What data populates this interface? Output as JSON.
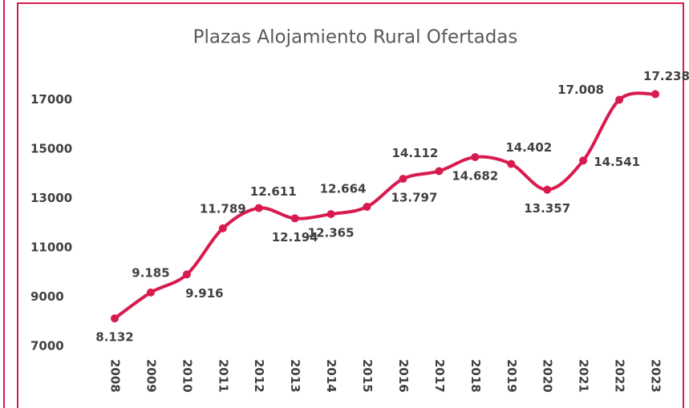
{
  "chart_data": {
    "type": "line",
    "title": "Plazas Alojamiento Rural Ofertadas",
    "categories": [
      "2008",
      "2009",
      "2010",
      "2011",
      "2012",
      "2013",
      "2014",
      "2015",
      "2016",
      "2017",
      "2018",
      "2019",
      "2020",
      "2021",
      "2022",
      "2023"
    ],
    "values": [
      8132,
      9185,
      9916,
      11789,
      12611,
      12194,
      12365,
      12664,
      13797,
      14112,
      14682,
      14402,
      13357,
      14541,
      17008,
      17238
    ],
    "value_labels": [
      "8.132",
      "9.185",
      "9.916",
      "11.789",
      "12.611",
      "12.194",
      "12.365",
      "12.664",
      "13.797",
      "14.112",
      "14.682",
      "14.402",
      "13.357",
      "14.541",
      "17.008",
      "17.238"
    ],
    "color": "#d81b4f",
    "ylim": [
      7000,
      18000
    ],
    "yticks": [
      7000,
      9000,
      11000,
      13000,
      15000,
      17000
    ]
  }
}
